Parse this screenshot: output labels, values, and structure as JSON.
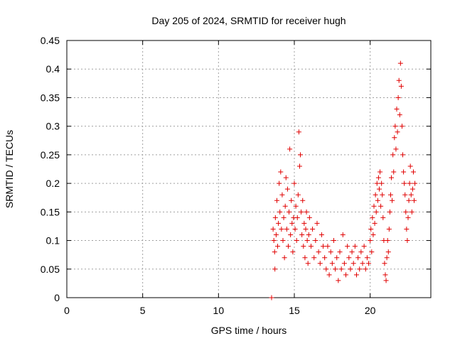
{
  "chart_data": {
    "type": "scatter",
    "title": "Day 205 of 2024, SRMTID for receiver hugh",
    "xlabel": "GPS time / hours",
    "ylabel": "SRMTID / TECUs",
    "xlim": [
      0,
      24
    ],
    "ylim": [
      0,
      0.45
    ],
    "xticks": [
      0,
      5,
      10,
      15,
      20
    ],
    "xtick_labels": [
      "0",
      "5",
      "10",
      "15",
      "20"
    ],
    "yticks": [
      0,
      0.05,
      0.1,
      0.15,
      0.2,
      0.25,
      0.3,
      0.35,
      0.4,
      0.45
    ],
    "ytick_labels": [
      "0",
      "0.05",
      "0.1",
      "0.15",
      "0.2",
      "0.25",
      "0.3",
      "0.35",
      "0.4",
      "0.45"
    ],
    "grid": true,
    "marker": "plus",
    "color": "#e00000",
    "series": [
      {
        "name": "SRMTID",
        "points": [
          [
            13.5,
            0.0
          ],
          [
            13.6,
            0.12
          ],
          [
            13.65,
            0.1
          ],
          [
            13.7,
            0.08
          ],
          [
            13.72,
            0.05
          ],
          [
            13.75,
            0.14
          ],
          [
            13.8,
            0.11
          ],
          [
            13.85,
            0.17
          ],
          [
            13.9,
            0.09
          ],
          [
            13.95,
            0.13
          ],
          [
            14.0,
            0.2
          ],
          [
            14.05,
            0.15
          ],
          [
            14.1,
            0.22
          ],
          [
            14.15,
            0.12
          ],
          [
            14.2,
            0.18
          ],
          [
            14.25,
            0.1
          ],
          [
            14.3,
            0.14
          ],
          [
            14.35,
            0.07
          ],
          [
            14.4,
            0.16
          ],
          [
            14.45,
            0.21
          ],
          [
            14.5,
            0.12
          ],
          [
            14.55,
            0.19
          ],
          [
            14.6,
            0.09
          ],
          [
            14.65,
            0.15
          ],
          [
            14.7,
            0.26
          ],
          [
            14.75,
            0.11
          ],
          [
            14.8,
            0.17
          ],
          [
            14.85,
            0.13
          ],
          [
            14.9,
            0.08
          ],
          [
            14.95,
            0.14
          ],
          [
            15.0,
            0.2
          ],
          [
            15.05,
            0.12
          ],
          [
            15.1,
            0.16
          ],
          [
            15.15,
            0.1
          ],
          [
            15.2,
            0.14
          ],
          [
            15.25,
            0.18
          ],
          [
            15.3,
            0.29
          ],
          [
            15.35,
            0.23
          ],
          [
            15.4,
            0.25
          ],
          [
            15.45,
            0.15
          ],
          [
            15.5,
            0.11
          ],
          [
            15.55,
            0.17
          ],
          [
            15.6,
            0.09
          ],
          [
            15.65,
            0.13
          ],
          [
            15.7,
            0.07
          ],
          [
            15.75,
            0.12
          ],
          [
            15.8,
            0.15
          ],
          [
            15.85,
            0.1
          ],
          [
            15.9,
            0.06
          ],
          [
            15.95,
            0.11
          ],
          [
            16.0,
            0.14
          ],
          [
            16.1,
            0.09
          ],
          [
            16.2,
            0.12
          ],
          [
            16.3,
            0.07
          ],
          [
            16.4,
            0.1
          ],
          [
            16.5,
            0.13
          ],
          [
            16.6,
            0.08
          ],
          [
            16.7,
            0.06
          ],
          [
            16.8,
            0.11
          ],
          [
            16.9,
            0.09
          ],
          [
            17.0,
            0.07
          ],
          [
            17.1,
            0.05
          ],
          [
            17.2,
            0.09
          ],
          [
            17.3,
            0.04
          ],
          [
            17.4,
            0.08
          ],
          [
            17.5,
            0.06
          ],
          [
            17.6,
            0.1
          ],
          [
            17.7,
            0.05
          ],
          [
            17.8,
            0.07
          ],
          [
            17.9,
            0.03
          ],
          [
            18.0,
            0.08
          ],
          [
            18.1,
            0.05
          ],
          [
            18.2,
            0.11
          ],
          [
            18.3,
            0.06
          ],
          [
            18.4,
            0.04
          ],
          [
            18.5,
            0.09
          ],
          [
            18.6,
            0.07
          ],
          [
            18.7,
            0.05
          ],
          [
            18.8,
            0.08
          ],
          [
            18.9,
            0.06
          ],
          [
            19.0,
            0.09
          ],
          [
            19.1,
            0.04
          ],
          [
            19.2,
            0.07
          ],
          [
            19.3,
            0.05
          ],
          [
            19.4,
            0.08
          ],
          [
            19.5,
            0.06
          ],
          [
            19.6,
            0.09
          ],
          [
            19.7,
            0.05
          ],
          [
            19.8,
            0.07
          ],
          [
            19.9,
            0.06
          ],
          [
            20.0,
            0.1
          ],
          [
            20.05,
            0.12
          ],
          [
            20.1,
            0.08
          ],
          [
            20.15,
            0.14
          ],
          [
            20.2,
            0.11
          ],
          [
            20.25,
            0.16
          ],
          [
            20.3,
            0.13
          ],
          [
            20.35,
            0.18
          ],
          [
            20.4,
            0.15
          ],
          [
            20.45,
            0.2
          ],
          [
            20.5,
            0.17
          ],
          [
            20.55,
            0.21
          ],
          [
            20.6,
            0.19
          ],
          [
            20.65,
            0.22
          ],
          [
            20.7,
            0.16
          ],
          [
            20.75,
            0.2
          ],
          [
            20.8,
            0.18
          ],
          [
            20.85,
            0.14
          ],
          [
            20.9,
            0.1
          ],
          [
            20.95,
            0.06
          ],
          [
            21.0,
            0.04
          ],
          [
            21.05,
            0.03
          ],
          [
            21.1,
            0.07
          ],
          [
            21.15,
            0.1
          ],
          [
            21.2,
            0.08
          ],
          [
            21.25,
            0.12
          ],
          [
            21.3,
            0.15
          ],
          [
            21.35,
            0.18
          ],
          [
            21.4,
            0.21
          ],
          [
            21.45,
            0.17
          ],
          [
            21.5,
            0.25
          ],
          [
            21.55,
            0.22
          ],
          [
            21.6,
            0.28
          ],
          [
            21.65,
            0.3
          ],
          [
            21.7,
            0.26
          ],
          [
            21.75,
            0.33
          ],
          [
            21.8,
            0.29
          ],
          [
            21.85,
            0.35
          ],
          [
            21.9,
            0.38
          ],
          [
            21.95,
            0.32
          ],
          [
            22.0,
            0.41
          ],
          [
            22.05,
            0.37
          ],
          [
            22.1,
            0.3
          ],
          [
            22.15,
            0.25
          ],
          [
            22.2,
            0.22
          ],
          [
            22.25,
            0.2
          ],
          [
            22.3,
            0.18
          ],
          [
            22.35,
            0.15
          ],
          [
            22.4,
            0.12
          ],
          [
            22.45,
            0.1
          ],
          [
            22.5,
            0.14
          ],
          [
            22.55,
            0.17
          ],
          [
            22.6,
            0.2
          ],
          [
            22.65,
            0.23
          ],
          [
            22.7,
            0.18
          ],
          [
            22.75,
            0.15
          ],
          [
            22.8,
            0.19
          ],
          [
            22.85,
            0.22
          ],
          [
            22.9,
            0.17
          ],
          [
            22.95,
            0.2
          ]
        ]
      }
    ]
  }
}
